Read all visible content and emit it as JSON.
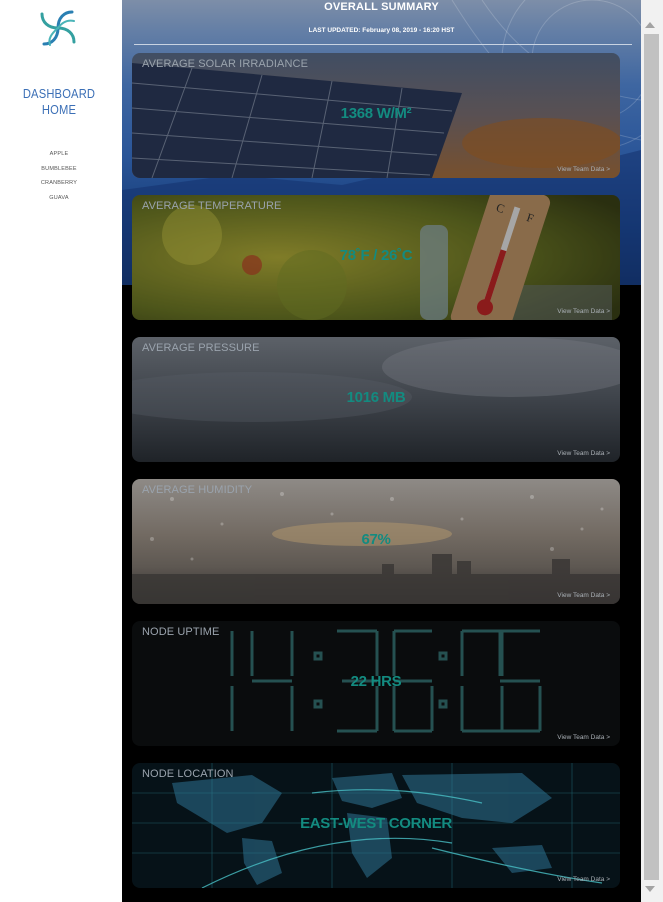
{
  "sidebar": {
    "dashboard_link": "DASHBOARD HOME",
    "teams": [
      "APPLE",
      "BUMBLEBEE",
      "CRANBERRY",
      "GUAVA"
    ]
  },
  "header": {
    "title": "OVERALL SUMMARY",
    "last_updated": "LAST UPDATED: February 08, 2019 - 16:20 HST"
  },
  "cards": [
    {
      "label": "AVERAGE SOLAR IRRADIANCE",
      "value": "1368 W/M²",
      "link": "View Team Data >"
    },
    {
      "label": "AVERAGE TEMPERATURE",
      "value": "78˚F / 26˚C",
      "link": "View Team Data >"
    },
    {
      "label": "AVERAGE PRESSURE",
      "value": "1016 MB",
      "link": "View Team Data >"
    },
    {
      "label": "AVERAGE HUMIDITY",
      "value": "67%",
      "link": "View Team Data >"
    },
    {
      "label": "NODE UPTIME",
      "value": "22 HRS",
      "link": "View Team Data >"
    },
    {
      "label": "NODE LOCATION",
      "value": "EAST-WEST CORNER",
      "link": "View Team Data >"
    }
  ],
  "icons": {
    "logo": "spiral-logo-icon",
    "scroll_up": "scroll-up-arrow-icon",
    "scroll_down": "scroll-down-arrow-icon"
  },
  "colors": {
    "accent": "#138b80",
    "nav_link": "#3b6fb6"
  }
}
